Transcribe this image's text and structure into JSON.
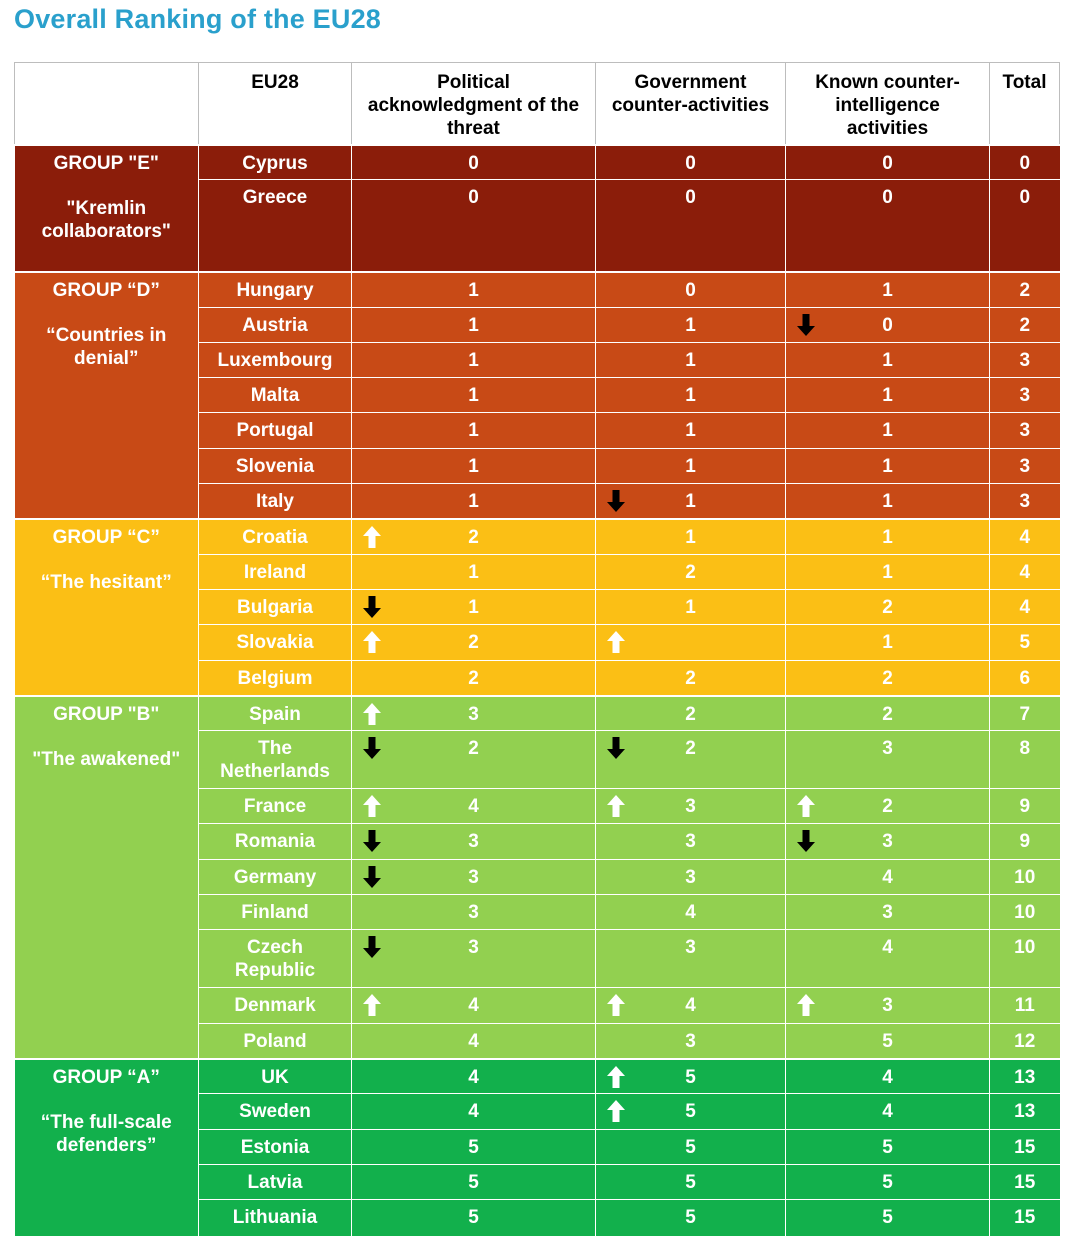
{
  "title": "Overall Ranking of the EU28",
  "headers": {
    "group": "",
    "country": "EU28",
    "political": "Political acknowledgment of the threat",
    "government": "Government counter-activities",
    "counterintel": "Known counter-intelligence activities",
    "total": "Total"
  },
  "colors": {
    "title": "#2aa0cc",
    "E": "#8b1d0a",
    "D": "#c84a16",
    "C": "#fbbf15",
    "B": "#92d050",
    "A": "#12b04c",
    "arrow_up": "#ffffff",
    "arrow_down": "#000000"
  },
  "groups": [
    {
      "id": "E",
      "label": "GROUP \"E\"",
      "name": "\"Kremlin collaborators\"",
      "rows": [
        {
          "country": "Cyprus",
          "political": "0",
          "government": "0",
          "counterintel": "0",
          "total": "0",
          "h": 35
        },
        {
          "country": "Greece",
          "political": "0",
          "government": "0",
          "counterintel": "0",
          "total": "0",
          "h": 92
        }
      ]
    },
    {
      "id": "D",
      "label": "GROUP “D”",
      "name": "“Countries in denial”",
      "rows": [
        {
          "country": "Hungary",
          "political": "1",
          "government": "0",
          "counterintel": "1",
          "total": "2",
          "h": 36
        },
        {
          "country": "Austria",
          "political": "1",
          "government": "1",
          "counterintel": "0",
          "total": "2",
          "h": 35,
          "arrows": {
            "counterintel": "down"
          }
        },
        {
          "country": "Luxembourg",
          "political": "1",
          "government": "1",
          "counterintel": "1",
          "total": "3",
          "h": 35
        },
        {
          "country": "Malta",
          "political": "1",
          "government": "1",
          "counterintel": "1",
          "total": "3",
          "h": 35
        },
        {
          "country": "Portugal",
          "political": "1",
          "government": "1",
          "counterintel": "1",
          "total": "3",
          "h": 36
        },
        {
          "country": "Slovenia",
          "political": "1",
          "government": "1",
          "counterintel": "1",
          "total": "3",
          "h": 35
        },
        {
          "country": "Italy",
          "political": "1",
          "government": "1",
          "counterintel": "1",
          "total": "3",
          "h": 35,
          "arrows": {
            "government": "down"
          }
        }
      ]
    },
    {
      "id": "C",
      "label": "GROUP “C”",
      "name": "“The hesitant”",
      "rows": [
        {
          "country": "Croatia",
          "political": "2",
          "government": "1",
          "counterintel": "1",
          "total": "4",
          "h": 36,
          "arrows": {
            "political": "up"
          }
        },
        {
          "country": "Ireland",
          "political": "1",
          "government": "2",
          "counterintel": "1",
          "total": "4",
          "h": 35
        },
        {
          "country": "Bulgaria",
          "political": "1",
          "government": "1",
          "counterintel": "2",
          "total": "4",
          "h": 35,
          "arrows": {
            "political": "down"
          }
        },
        {
          "country": "Slovakia",
          "political": "2",
          "government": "",
          "counterintel": "1",
          "total": "5",
          "h": 36,
          "arrows": {
            "political": "up",
            "government": "up"
          }
        },
        {
          "country": "Belgium",
          "political": "2",
          "government": "2",
          "counterintel": "2",
          "total": "6",
          "h": 35
        }
      ]
    },
    {
      "id": "B",
      "label": "GROUP \"B\"",
      "name": "\"The awakened\"",
      "rows": [
        {
          "country": "Spain",
          "political": "3",
          "government": "2",
          "counterintel": "2",
          "total": "7",
          "h": 35,
          "arrows": {
            "political": "up"
          }
        },
        {
          "country": "The Netherlands",
          "political": "2",
          "government": "2",
          "counterintel": "3",
          "total": "8",
          "h": 58,
          "arrows": {
            "political": "down",
            "government": "down"
          }
        },
        {
          "country": "France",
          "political": "4",
          "government": "3",
          "counterintel": "2",
          "total": "9",
          "h": 35,
          "arrows": {
            "political": "up",
            "government": "up",
            "counterintel": "up"
          }
        },
        {
          "country": "Romania",
          "political": "3",
          "government": "3",
          "counterintel": "3",
          "total": "9",
          "h": 36,
          "arrows": {
            "political": "down",
            "counterintel": "down"
          }
        },
        {
          "country": "Germany",
          "political": "3",
          "government": "3",
          "counterintel": "4",
          "total": "10",
          "h": 35,
          "arrows": {
            "political": "down"
          }
        },
        {
          "country": "Finland",
          "political": "3",
          "government": "4",
          "counterintel": "3",
          "total": "10",
          "h": 35
        },
        {
          "country": "Czech Republic",
          "political": "3",
          "government": "3",
          "counterintel": "4",
          "total": "10",
          "h": 58,
          "arrows": {
            "political": "down"
          }
        },
        {
          "country": "Denmark",
          "political": "4",
          "government": "4",
          "counterintel": "3",
          "total": "11",
          "h": 36,
          "arrows": {
            "political": "up",
            "government": "up",
            "counterintel": "up"
          }
        },
        {
          "country": "Poland",
          "political": "4",
          "government": "3",
          "counterintel": "5",
          "total": "12",
          "h": 35
        }
      ]
    },
    {
      "id": "A",
      "label": "GROUP “A”",
      "name": "“The full-scale defenders”",
      "rows": [
        {
          "country": "UK",
          "political": "4",
          "government": "5",
          "counterintel": "4",
          "total": "13",
          "h": 35,
          "arrows": {
            "government": "up"
          }
        },
        {
          "country": "Sweden",
          "political": "4",
          "government": "5",
          "counterintel": "4",
          "total": "13",
          "h": 36,
          "arrows": {
            "government": "up"
          }
        },
        {
          "country": "Estonia",
          "political": "5",
          "government": "5",
          "counterintel": "5",
          "total": "15",
          "h": 35
        },
        {
          "country": "Latvia",
          "political": "5",
          "government": "5",
          "counterintel": "5",
          "total": "15",
          "h": 35
        },
        {
          "country": "Lithuania",
          "political": "5",
          "government": "5",
          "counterintel": "5",
          "total": "15",
          "h": 36
        }
      ]
    }
  ]
}
